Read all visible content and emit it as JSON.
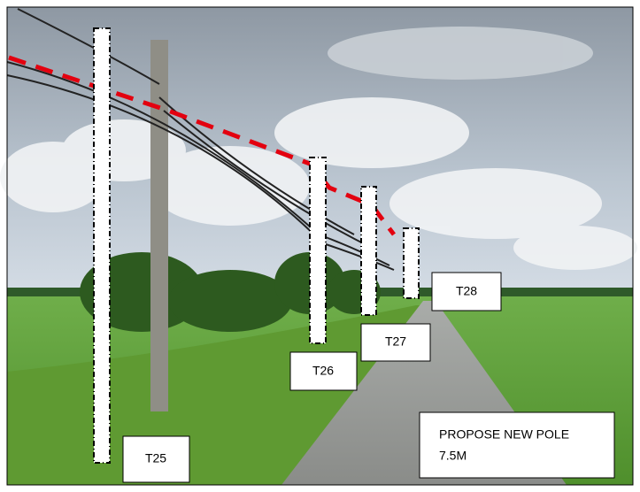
{
  "labels": [
    "T25",
    "T26",
    "T27",
    "T28"
  ],
  "note": {
    "line1": "PROPOSE NEW POLE",
    "line2": "7.5M"
  }
}
